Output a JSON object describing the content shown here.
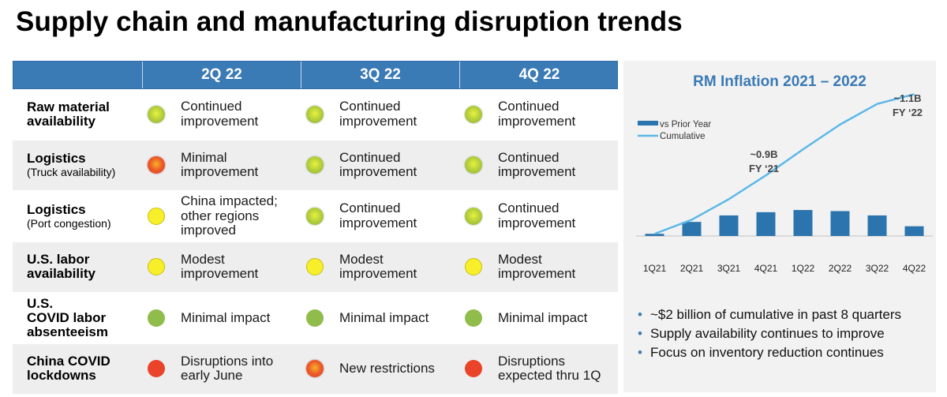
{
  "title": "Supply chain and manufacturing disruption trends",
  "colors": {
    "header_blue": "#3a7ab5",
    "bar_blue": "#2b74ad",
    "line_light_blue": "#5bb8e8",
    "status_green": "#8fbc4a",
    "status_yellow": "#f7ef2a",
    "status_red": "#e9442a"
  },
  "table": {
    "headers": [
      "",
      "2Q 22",
      "3Q 22",
      "4Q 22"
    ],
    "rows": [
      {
        "label": "Raw material\navailability",
        "sublabel": "",
        "cells": [
          {
            "status": "green-improving",
            "text": "Continued\nimprovement"
          },
          {
            "status": "green-improving",
            "text": "Continued\nimprovement"
          },
          {
            "status": "green-improving",
            "text": "Continued\nimprovement"
          }
        ]
      },
      {
        "label": "Logistics",
        "sublabel": "(Truck availability)",
        "cells": [
          {
            "status": "red-improving",
            "text": "Minimal\nimprovement"
          },
          {
            "status": "green-improving",
            "text": "Continued\nimprovement"
          },
          {
            "status": "green-improving",
            "text": "Continued\nimprovement"
          }
        ]
      },
      {
        "label": "Logistics",
        "sublabel": "(Port congestion)",
        "cells": [
          {
            "status": "yellow",
            "text": "China impacted;\nother regions\nimproved"
          },
          {
            "status": "green-improving",
            "text": "Continued\nimprovement"
          },
          {
            "status": "green-improving",
            "text": "Continued\nimprovement"
          }
        ]
      },
      {
        "label": "U.S. labor\navailability",
        "sublabel": "",
        "cells": [
          {
            "status": "yellow",
            "text": "Modest\nimprovement"
          },
          {
            "status": "yellow",
            "text": "Modest\nimprovement"
          },
          {
            "status": "yellow",
            "text": "Modest\nimprovement"
          }
        ]
      },
      {
        "label": "U.S.\nCOVID labor\nabsenteeism",
        "sublabel": "",
        "cells": [
          {
            "status": "green",
            "text": "Minimal impact"
          },
          {
            "status": "green",
            "text": "Minimal impact"
          },
          {
            "status": "green",
            "text": "Minimal impact"
          }
        ]
      },
      {
        "label": "China COVID\nlockdowns",
        "sublabel": "",
        "cells": [
          {
            "status": "red",
            "text": "Disruptions into\nearly June"
          },
          {
            "status": "red-improving",
            "text": "New restrictions"
          },
          {
            "status": "red",
            "text": "Disruptions\nexpected thru 1Q"
          }
        ]
      }
    ]
  },
  "chart_data": {
    "type": "bar",
    "title": "RM Inflation 2021 – 2022",
    "categories": [
      "1Q21",
      "2Q21",
      "3Q21",
      "4Q21",
      "1Q22",
      "2Q22",
      "3Q22",
      "4Q22"
    ],
    "series": [
      {
        "name": "vs Prior Year",
        "type": "bar",
        "values": [
          0.02,
          0.13,
          0.19,
          0.22,
          0.24,
          0.23,
          0.19,
          0.09
        ]
      },
      {
        "name": "Cumulative",
        "type": "line",
        "values": [
          0.02,
          0.15,
          0.34,
          0.56,
          0.8,
          1.03,
          1.22,
          1.31
        ]
      }
    ],
    "annotations": [
      {
        "line1": "~0.9B",
        "line2": "FY ‘21",
        "at": "4Q21"
      },
      {
        "line1": "~1.1B",
        "line2": "FY ‘22",
        "at": "4Q22"
      }
    ],
    "legend": "top-left",
    "ylim": [
      0,
      1.4
    ]
  },
  "bullets": [
    "~$2 billion of cumulative in past 8 quarters",
    "Supply availability continues to improve",
    "Focus on inventory reduction continues"
  ]
}
